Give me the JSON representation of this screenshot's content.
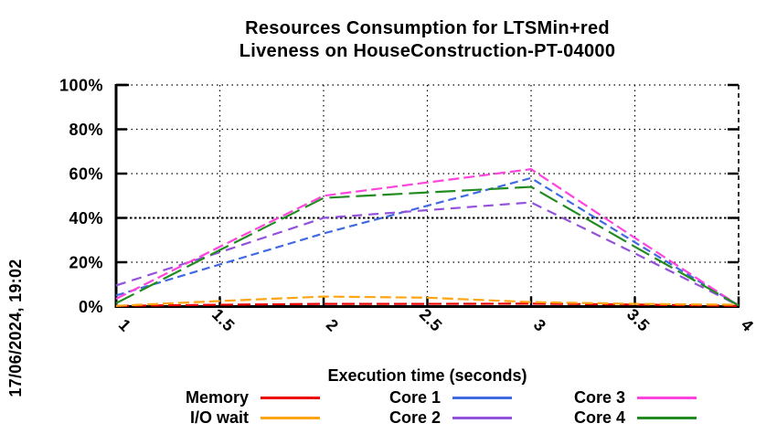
{
  "timestamp": "17/06/2024, 19:02",
  "chart_data": {
    "type": "line",
    "title_lines": [
      "Resources Consumption for LTSMin+red",
      "Liveness on HouseConstruction-PT-04000"
    ],
    "xlabel": "Execution time (seconds)",
    "ylabel": "",
    "xlim": [
      1,
      4
    ],
    "ylim": [
      0,
      100
    ],
    "grid": true,
    "legend_position": "bottom",
    "x": [
      1,
      1.5,
      2,
      2.5,
      3,
      3.5,
      4
    ],
    "xtick_labels": [
      "1",
      "1.5",
      "2",
      "2.5",
      "3",
      "3.5",
      "4"
    ],
    "ytick_values": [
      0,
      20,
      40,
      60,
      80,
      100
    ],
    "ytick_labels": [
      "0%",
      "20%",
      "40%",
      "60%",
      "80%",
      "100%"
    ],
    "series": [
      {
        "name": "Memory",
        "color": "#ee0000",
        "dash": "14 5",
        "values": [
          0.3,
          0.8,
          1.2,
          1.2,
          1.3,
          0.9,
          0.3
        ]
      },
      {
        "name": "I/O wait",
        "color": "#ffa513",
        "dash": "12 5",
        "values": [
          0.3,
          2.5,
          4.5,
          4.0,
          2.0,
          1.2,
          0.8
        ]
      },
      {
        "name": "Core 1",
        "color": "#4169e1",
        "dash": "9 5",
        "values": [
          5,
          19,
          33,
          45.5,
          58,
          29,
          0.5
        ]
      },
      {
        "name": "Core 2",
        "color": "#9351dc",
        "dash": "11 7",
        "values": [
          9.5,
          24.5,
          40,
          43.5,
          47,
          24,
          0.5
        ]
      },
      {
        "name": "Core 3",
        "color": "#ff44dd",
        "dash": "12 5",
        "values": [
          3.5,
          27,
          50,
          56,
          62,
          31,
          0.5
        ]
      },
      {
        "name": "Core 4",
        "color": "#228b22",
        "dash": "22 7",
        "values": [
          1.5,
          25.5,
          49,
          51.5,
          54,
          27,
          0.5
        ]
      }
    ]
  }
}
